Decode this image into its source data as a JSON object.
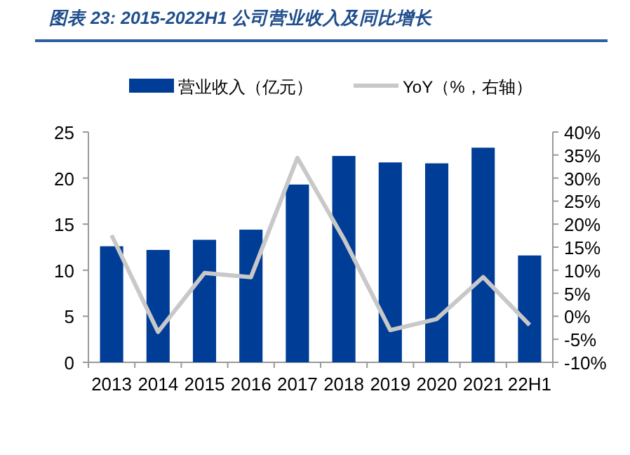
{
  "chart_data": {
    "type": "bar",
    "title": "图表 23:  2015-2022H1 公司营业收入及同比增长",
    "categories": [
      "2013",
      "2014",
      "2015",
      "2016",
      "2017",
      "2018",
      "2019",
      "2020",
      "2021",
      "22H1"
    ],
    "series": [
      {
        "name": "营业收入（亿元）",
        "color": "#003d97",
        "values": [
          12.6,
          12.2,
          13.3,
          14.4,
          19.3,
          22.4,
          21.7,
          21.6,
          23.3,
          11.6
        ]
      },
      {
        "name": "YoY（%，右轴）",
        "type": "line",
        "axis": "y2",
        "color": "#c8c8c8",
        "values": [
          17.6,
          -3.4,
          9.4,
          8.5,
          34.4,
          16.8,
          -3.0,
          -0.6,
          8.5,
          -1.9
        ]
      }
    ],
    "ylim": [
      0,
      25
    ],
    "yticks": [
      0,
      5,
      10,
      15,
      20,
      25
    ],
    "y2lim": [
      -10,
      40
    ],
    "y2ticks": [
      {
        "value": -10,
        "label": "-10%"
      },
      {
        "value": -5,
        "label": "-5%"
      },
      {
        "value": 0,
        "label": "0%"
      },
      {
        "value": 5,
        "label": "5%"
      },
      {
        "value": 10,
        "label": "10%"
      },
      {
        "value": 15,
        "label": "15%"
      },
      {
        "value": 20,
        "label": "20%"
      },
      {
        "value": 25,
        "label": "25%"
      },
      {
        "value": 30,
        "label": "30%"
      },
      {
        "value": 35,
        "label": "35%"
      },
      {
        "value": 40,
        "label": "40%"
      }
    ],
    "legend": "top",
    "grid": false
  }
}
